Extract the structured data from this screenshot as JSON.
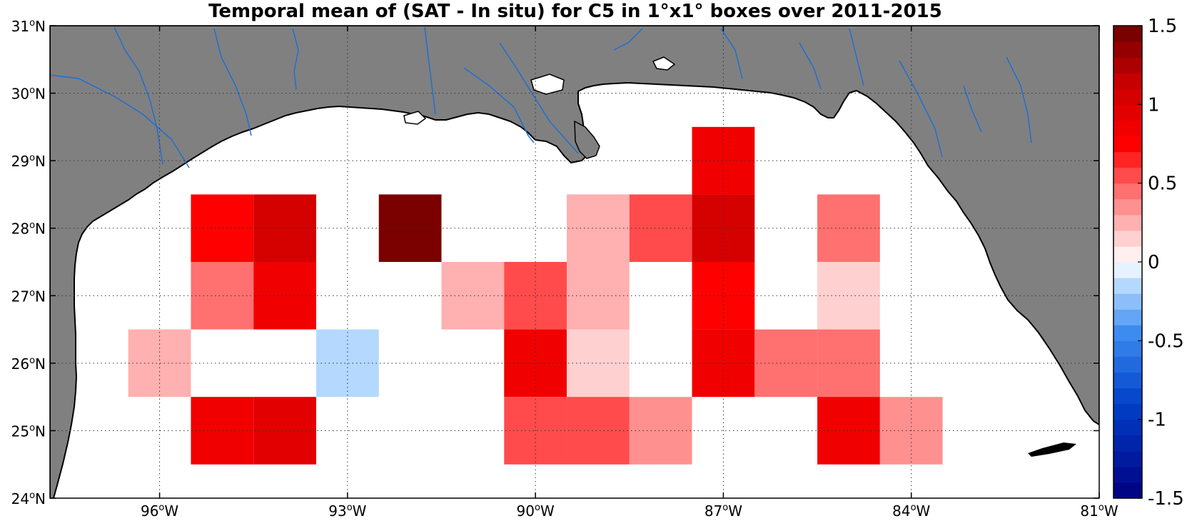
{
  "title": "Temporal mean of (SAT - In situ) for C5 in 1°x1° boxes over 2011-2015",
  "chart_data": {
    "type": "heatmap",
    "title": "Temporal mean of (SAT - In situ) for C5 in 1°x1° boxes over 2011-2015",
    "xlim": [
      -97.75,
      -81
    ],
    "ylim": [
      24,
      31
    ],
    "x_ticks": [
      {
        "value": -96,
        "label": "96°W"
      },
      {
        "value": -93,
        "label": "93°W"
      },
      {
        "value": -90,
        "label": "90°W"
      },
      {
        "value": -87,
        "label": "87°W"
      },
      {
        "value": -84,
        "label": "84°W"
      },
      {
        "value": -81,
        "label": "81°W"
      }
    ],
    "y_ticks": [
      {
        "value": 24,
        "label": "24°N"
      },
      {
        "value": 25,
        "label": "25°N"
      },
      {
        "value": 26,
        "label": "26°N"
      },
      {
        "value": 27,
        "label": "27°N"
      },
      {
        "value": 28,
        "label": "28°N"
      },
      {
        "value": 29,
        "label": "29°N"
      },
      {
        "value": 30,
        "label": "30°N"
      },
      {
        "value": 31,
        "label": "31°N"
      }
    ],
    "grid": "dotted",
    "cells": [
      {
        "lon": -95,
        "lat": 28,
        "value": 0.7
      },
      {
        "lon": -94,
        "lat": 28,
        "value": 1.0
      },
      {
        "lon": -92,
        "lat": 28,
        "value": 1.5
      },
      {
        "lon": -89,
        "lat": 28,
        "value": 0.2
      },
      {
        "lon": -88,
        "lat": 28,
        "value": 0.55
      },
      {
        "lon": -87,
        "lat": 28,
        "value": 1.0
      },
      {
        "lon": -85,
        "lat": 28,
        "value": 0.4
      },
      {
        "lon": -87,
        "lat": 29,
        "value": 0.8
      },
      {
        "lon": -95,
        "lat": 27,
        "value": 0.4
      },
      {
        "lon": -94,
        "lat": 27,
        "value": 0.85
      },
      {
        "lon": -91,
        "lat": 27,
        "value": 0.25
      },
      {
        "lon": -90,
        "lat": 27,
        "value": 0.55
      },
      {
        "lon": -89,
        "lat": 27,
        "value": 0.25
      },
      {
        "lon": -87,
        "lat": 27,
        "value": 0.7
      },
      {
        "lon": -85,
        "lat": 27,
        "value": 0.12
      },
      {
        "lon": -96,
        "lat": 26,
        "value": 0.25
      },
      {
        "lon": -93,
        "lat": 26,
        "value": -0.1
      },
      {
        "lon": -90,
        "lat": 26,
        "value": 0.8
      },
      {
        "lon": -89,
        "lat": 26,
        "value": 0.12
      },
      {
        "lon": -87,
        "lat": 26,
        "value": 0.85
      },
      {
        "lon": -86,
        "lat": 26,
        "value": 0.45
      },
      {
        "lon": -85,
        "lat": 26,
        "value": 0.45
      },
      {
        "lon": -95,
        "lat": 25,
        "value": 0.85
      },
      {
        "lon": -94,
        "lat": 25,
        "value": 0.95
      },
      {
        "lon": -90,
        "lat": 25,
        "value": 0.55
      },
      {
        "lon": -89,
        "lat": 25,
        "value": 0.55
      },
      {
        "lon": -88,
        "lat": 25,
        "value": 0.3
      },
      {
        "lon": -85,
        "lat": 25,
        "value": 0.85
      },
      {
        "lon": -84,
        "lat": 25,
        "value": 0.3
      }
    ],
    "colorbar": {
      "min": -1.5,
      "max": 1.5,
      "ticks": [
        {
          "value": 1.5,
          "label": "1.5"
        },
        {
          "value": 1,
          "label": "1"
        },
        {
          "value": 0.5,
          "label": "0.5"
        },
        {
          "value": 0,
          "label": "0"
        },
        {
          "value": -0.5,
          "label": "-0.5"
        },
        {
          "value": -1,
          "label": "-1"
        },
        {
          "value": -1.5,
          "label": "-1.5"
        }
      ],
      "steps": 30,
      "colormap": "blue-white-red"
    },
    "colors": {
      "land": "#808080",
      "ocean": "#ffffff",
      "coast": "#000000",
      "rivers": "#1f6fd1",
      "grid": "#333333"
    }
  }
}
